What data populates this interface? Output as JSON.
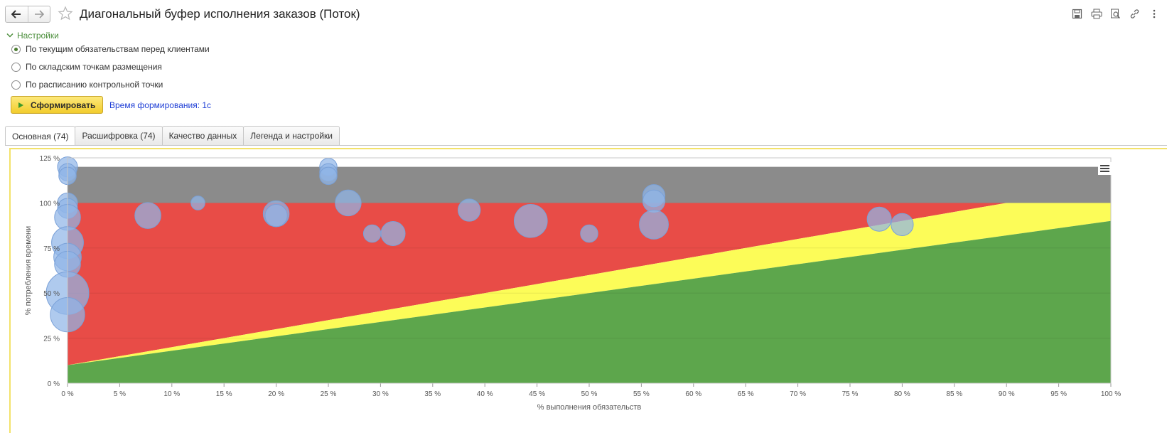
{
  "window": {
    "title": "Диагональный буфер исполнения заказов (Поток)"
  },
  "toolbar": {
    "back_icon": "arrow-left-icon",
    "forward_icon": "arrow-right-icon",
    "favorite_icon": "star-icon",
    "right_icons": [
      "save-icon",
      "print-icon",
      "preview-icon",
      "link-icon",
      "more-vertical-icon"
    ]
  },
  "settings": {
    "label": "Настройки",
    "options": [
      {
        "label": "По текущим обязательствам перед клиентами",
        "selected": true
      },
      {
        "label": "По складским точкам размещения",
        "selected": false
      },
      {
        "label": "По расписанию контрольной точки",
        "selected": false
      }
    ],
    "generate_label": "Сформировать",
    "generation_time": "Время формирования: 1с"
  },
  "tabs": [
    {
      "label": "Основная (74)",
      "active": true
    },
    {
      "label": "Расшифровка (74)",
      "active": false
    },
    {
      "label": "Качество данных",
      "active": false
    },
    {
      "label": "Легенда и настройки",
      "active": false
    }
  ],
  "colors": {
    "zone_gray": "#8b8b8b",
    "zone_red": "#e84c47",
    "zone_yellow": "#fcfc58",
    "zone_green": "#5da64c",
    "bubble_fill": "#90b6e8",
    "bubble_stroke": "#7aa1d8",
    "accent_green": "#4b8e3b",
    "link_blue": "#1f3fd6"
  },
  "chart_data": {
    "type": "scatter",
    "subtype": "bubble",
    "xlabel": "% выполнения обязательств",
    "ylabel": "% потребления времени",
    "xlim": [
      0,
      100
    ],
    "ylim": [
      0,
      125
    ],
    "x_ticks": [
      "0 %",
      "5 %",
      "10 %",
      "15 %",
      "20 %",
      "25 %",
      "30 %",
      "35 %",
      "40 %",
      "45 %",
      "50 %",
      "55 %",
      "60 %",
      "65 %",
      "70 %",
      "75 %",
      "80 %",
      "85 %",
      "90 %",
      "95 %",
      "100 %"
    ],
    "y_ticks": [
      "0 %",
      "25 %",
      "50 %",
      "75 %",
      "100 %",
      "125 %"
    ],
    "grid": true,
    "legend": "none",
    "zones": [
      {
        "name": "gray",
        "y_from": 100,
        "y_to": 120
      },
      {
        "name": "red",
        "upper": [
          [
            0,
            100
          ],
          [
            100,
            100
          ]
        ],
        "lower": [
          [
            0,
            10
          ],
          [
            90,
            100
          ],
          [
            100,
            100
          ]
        ]
      },
      {
        "name": "yellow",
        "upper": [
          [
            0,
            10
          ],
          [
            90,
            100
          ],
          [
            100,
            100
          ]
        ],
        "lower": [
          [
            0,
            10
          ],
          [
            100,
            90
          ]
        ]
      },
      {
        "name": "green",
        "upper": [
          [
            0,
            10
          ],
          [
            100,
            90
          ]
        ],
        "lower": [
          [
            0,
            0
          ],
          [
            100,
            0
          ]
        ]
      }
    ],
    "points": [
      {
        "x": 0,
        "y": 120,
        "size": 3
      },
      {
        "x": 0,
        "y": 117,
        "size": 2
      },
      {
        "x": 0,
        "y": 115,
        "size": 2
      },
      {
        "x": 0,
        "y": 100,
        "size": 3
      },
      {
        "x": 0,
        "y": 97,
        "size": 3
      },
      {
        "x": 0,
        "y": 92,
        "size": 6
      },
      {
        "x": 0,
        "y": 78,
        "size": 10
      },
      {
        "x": 0,
        "y": 70,
        "size": 7
      },
      {
        "x": 0,
        "y": 66,
        "size": 6
      },
      {
        "x": 0,
        "y": 50,
        "size": 20
      },
      {
        "x": 0,
        "y": 38,
        "size": 12
      },
      {
        "x": 7.7,
        "y": 93,
        "size": 6
      },
      {
        "x": 12.5,
        "y": 100,
        "size": 1
      },
      {
        "x": 20,
        "y": 94,
        "size": 6
      },
      {
        "x": 20,
        "y": 93,
        "size": 4
      },
      {
        "x": 25,
        "y": 120,
        "size": 2
      },
      {
        "x": 25,
        "y": 117,
        "size": 2
      },
      {
        "x": 25,
        "y": 115,
        "size": 2
      },
      {
        "x": 26.9,
        "y": 100,
        "size": 6
      },
      {
        "x": 29.2,
        "y": 83,
        "size": 2
      },
      {
        "x": 31.2,
        "y": 83,
        "size": 5
      },
      {
        "x": 38.5,
        "y": 96,
        "size": 4
      },
      {
        "x": 44.4,
        "y": 90,
        "size": 11
      },
      {
        "x": 50,
        "y": 83,
        "size": 2
      },
      {
        "x": 56.2,
        "y": 104,
        "size": 4
      },
      {
        "x": 56.2,
        "y": 101,
        "size": 4
      },
      {
        "x": 56.2,
        "y": 88,
        "size": 8
      },
      {
        "x": 77.8,
        "y": 91,
        "size": 5
      },
      {
        "x": 80,
        "y": 88,
        "size": 4
      }
    ]
  }
}
